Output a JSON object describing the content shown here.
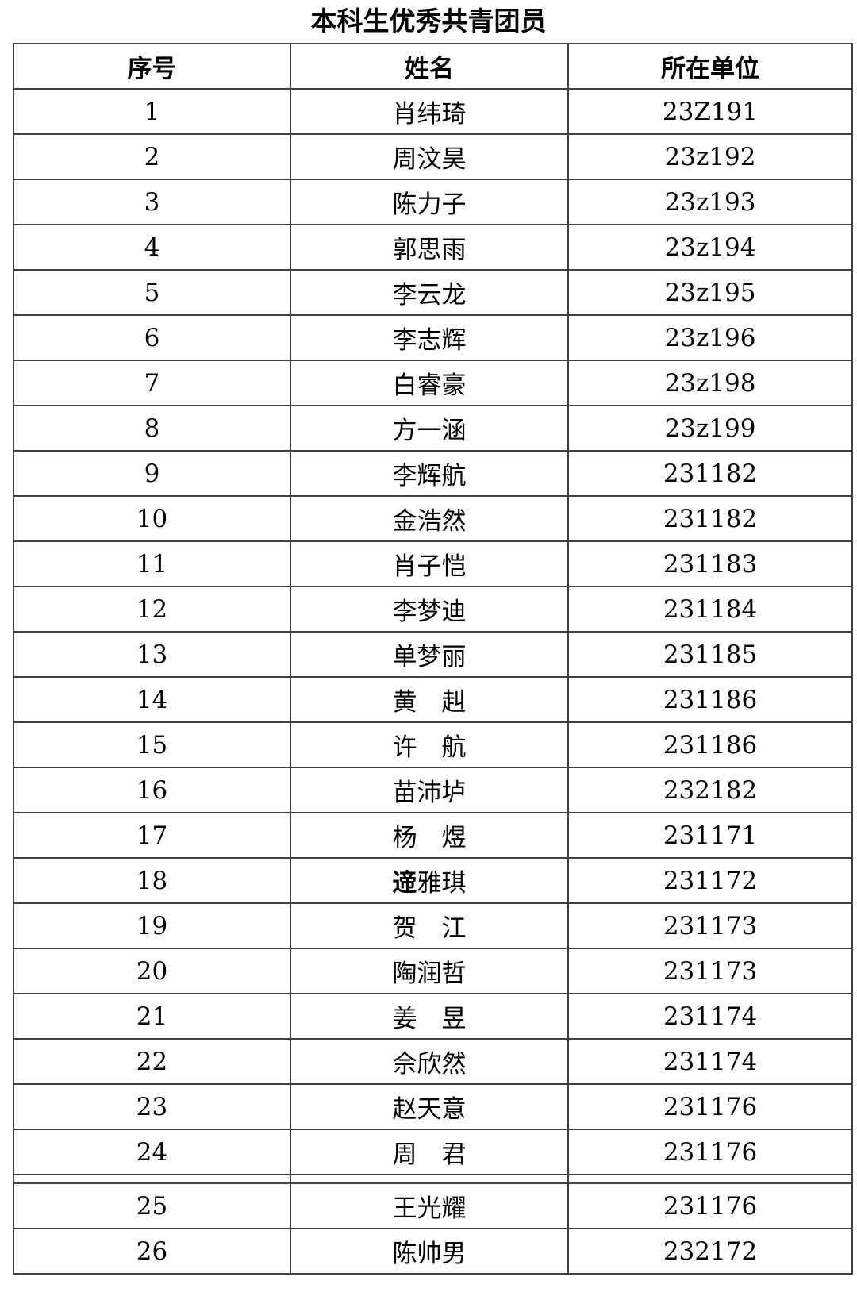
{
  "title": "本科生优秀共青团员",
  "table": {
    "headers": [
      "序号",
      "姓名",
      "所在单位"
    ],
    "rows": [
      {
        "no": "1",
        "name": "肖纬琦",
        "unit": "23Z191"
      },
      {
        "no": "2",
        "name": "周汶昊",
        "unit": "23z192"
      },
      {
        "no": "3",
        "name": "陈力子",
        "unit": "23z193"
      },
      {
        "no": "4",
        "name": "郭思雨",
        "unit": "23z194"
      },
      {
        "no": "5",
        "name": "李云龙",
        "unit": "23z195"
      },
      {
        "no": "6",
        "name": "李志辉",
        "unit": "23z196"
      },
      {
        "no": "7",
        "name": "白睿豪",
        "unit": "23z198"
      },
      {
        "no": "8",
        "name": "方一涵",
        "unit": "23z199"
      },
      {
        "no": "9",
        "name": "李辉航",
        "unit": "231182"
      },
      {
        "no": "10",
        "name": "金浩然",
        "unit": "231182"
      },
      {
        "no": "11",
        "name": "肖子恺",
        "unit": "231183"
      },
      {
        "no": "12",
        "name": "李梦迪",
        "unit": "231184"
      },
      {
        "no": "13",
        "name": "单梦丽",
        "unit": "231185"
      },
      {
        "no": "14",
        "name": "黄　赳",
        "unit": "231186"
      },
      {
        "no": "15",
        "name": "许　航",
        "unit": "231186"
      },
      {
        "no": "16",
        "name": "苗沛垆",
        "unit": "232182"
      },
      {
        "no": "17",
        "name": "杨　煜",
        "unit": "231171"
      },
      {
        "no": "18",
        "name": "遆雅琪",
        "unit": "231172",
        "bold_first_char": true
      },
      {
        "no": "19",
        "name": "贺　江",
        "unit": "231173"
      },
      {
        "no": "20",
        "name": "陶润哲",
        "unit": "231173"
      },
      {
        "no": "21",
        "name": "姜　昱",
        "unit": "231174"
      },
      {
        "no": "22",
        "name": "佘欣然",
        "unit": "231174"
      },
      {
        "no": "23",
        "name": "赵天意",
        "unit": "231176"
      },
      {
        "no": "24",
        "name": "周　君",
        "unit": "231176"
      },
      {
        "no": "25",
        "name": "王光耀",
        "unit": "231176",
        "page_break_before": true
      },
      {
        "no": "26",
        "name": "陈帅男",
        "unit": "232172"
      }
    ]
  }
}
